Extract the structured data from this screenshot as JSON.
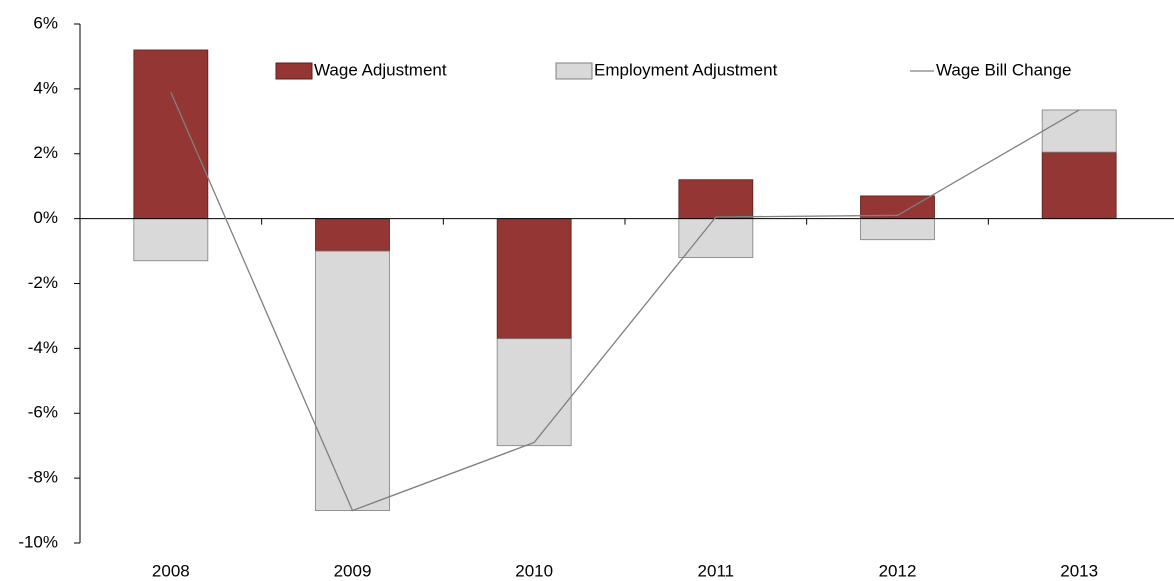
{
  "chart_data": {
    "type": "bar",
    "stacked": true,
    "categories": [
      "2008",
      "2009",
      "2010",
      "2011",
      "2012",
      "2013"
    ],
    "series": [
      {
        "name": "Wage Adjustment",
        "color": "#943634",
        "values": [
          5.2,
          -1.0,
          -3.7,
          1.2,
          0.7,
          2.05
        ]
      },
      {
        "name": "Employment Adjustment",
        "color": "#d9d9d9",
        "values": [
          -1.3,
          -8.0,
          -3.3,
          -1.2,
          -0.65,
          1.3
        ]
      },
      {
        "name": "Wage Bill Change",
        "type": "line",
        "color": "#808080",
        "values": [
          3.9,
          -9.0,
          -6.9,
          0.05,
          0.1,
          3.35
        ]
      }
    ],
    "ylim": [
      -10,
      6
    ],
    "yticks": [
      {
        "value": -10,
        "label": "-10%"
      },
      {
        "value": -8,
        "label": "-8%"
      },
      {
        "value": -6,
        "label": "-6%"
      },
      {
        "value": -4,
        "label": "-4%"
      },
      {
        "value": -2,
        "label": "-2%"
      },
      {
        "value": 0,
        "label": "0%"
      },
      {
        "value": 2,
        "label": "2%"
      },
      {
        "value": 4,
        "label": "4%"
      },
      {
        "value": 6,
        "label": "6%"
      }
    ],
    "legend": "top"
  }
}
